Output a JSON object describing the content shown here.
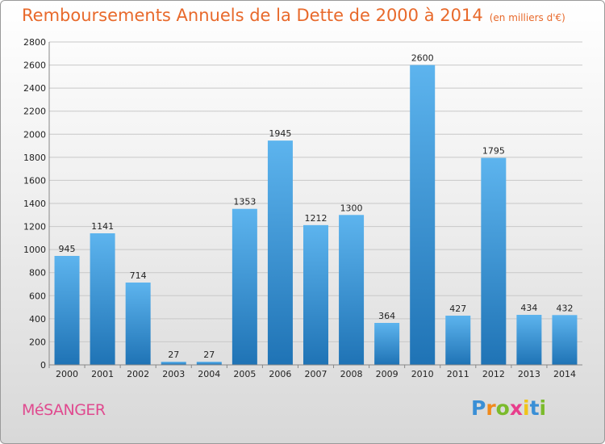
{
  "title": "Remboursements Annuels de la Dette de 2000 à 2014",
  "subtitle": "(en milliers d'€)",
  "commune": "MéSANGER",
  "logo": {
    "letters": [
      "P",
      "r",
      "o",
      "x",
      "i",
      "t",
      "i"
    ],
    "colors": [
      "#3a8fd6",
      "#f08a1c",
      "#7bbb2c",
      "#e83e8c",
      "#f0c419",
      "#3a8fd6",
      "#7bbb2c"
    ]
  },
  "colors": {
    "bar_top": "#5db4ee",
    "bar_bottom": "#1f73b5",
    "title": "#e8692b",
    "commune": "#e04a8f"
  },
  "chart_data": {
    "type": "bar",
    "title": "Remboursements Annuels de la Dette de 2000 à 2014",
    "xlabel": "",
    "ylabel": "",
    "categories": [
      "2000",
      "2001",
      "2002",
      "2003",
      "2004",
      "2005",
      "2006",
      "2007",
      "2008",
      "2009",
      "2010",
      "2011",
      "2012",
      "2013",
      "2014"
    ],
    "values": [
      945,
      1141,
      714,
      27,
      27,
      1353,
      1945,
      1212,
      1300,
      364,
      2600,
      427,
      1795,
      434,
      432
    ],
    "ylim": [
      0,
      2800
    ],
    "yticks": [
      0,
      200,
      400,
      600,
      800,
      1000,
      1200,
      1400,
      1600,
      1800,
      2000,
      2200,
      2400,
      2600,
      2800
    ],
    "grid": true
  }
}
